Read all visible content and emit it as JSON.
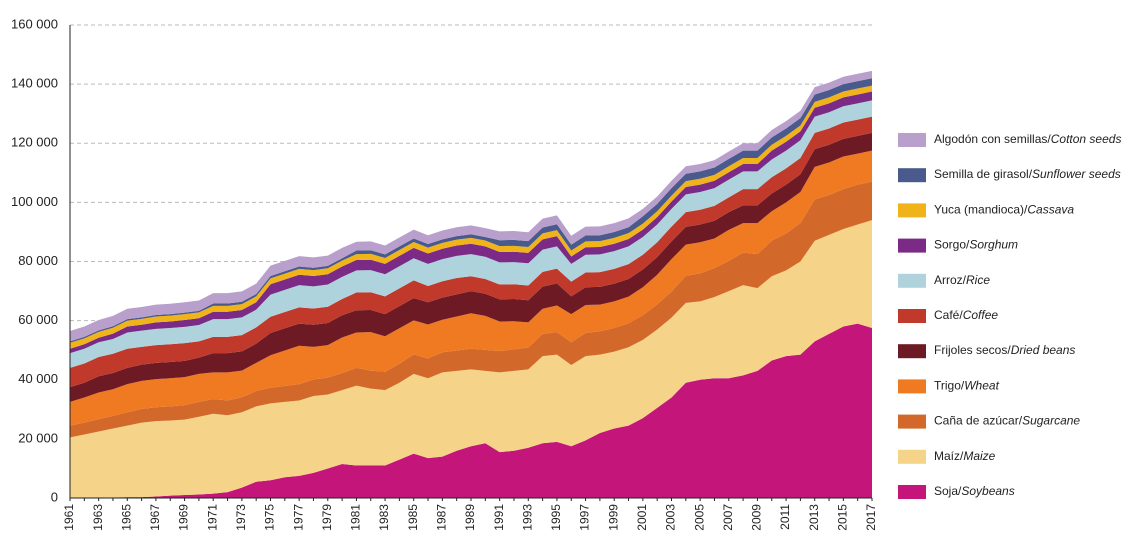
{
  "chart_data": {
    "type": "area",
    "stacked": true,
    "grid": true,
    "legend": "right",
    "categories": [
      "1961",
      null,
      "1963",
      null,
      "1965",
      null,
      "1967",
      null,
      "1969",
      null,
      "1971",
      null,
      "1973",
      null,
      "1975",
      null,
      "1977",
      null,
      "1979",
      null,
      "1981",
      null,
      "1983",
      null,
      "1985",
      null,
      "1987",
      null,
      "1989",
      null,
      "1991",
      null,
      "1993",
      null,
      "1995",
      null,
      "1997",
      null,
      "1999",
      null,
      "2001",
      null,
      "2003",
      null,
      "2005",
      null,
      "2007",
      null,
      "2009",
      null,
      "2011",
      null,
      "2013",
      null,
      "2015",
      null,
      "2017"
    ],
    "ylim": [
      0,
      160000
    ],
    "yticks": [
      0,
      {
        "value": 20000,
        "label": "20 000"
      },
      {
        "value": 40000,
        "label": "40 000"
      },
      {
        "value": 60000,
        "label": "60 000"
      },
      {
        "value": 80000,
        "label": "80 000"
      },
      {
        "value": 100000,
        "label": "100 000"
      },
      {
        "value": 120000,
        "label": "120 000"
      },
      {
        "value": 140000,
        "label": "140 000"
      },
      {
        "value": 160000,
        "label": "160 000"
      }
    ],
    "series": [
      {
        "name": "Soja/Soybeans",
        "color": "#c4157b",
        "values": [
          0,
          0,
          100,
          200,
          300,
          300,
          500,
          800,
          1000,
          1200,
          1500,
          2000,
          3500,
          5500,
          6000,
          7000,
          7500,
          8500,
          10000,
          11500,
          11000,
          11000,
          11000,
          13000,
          15000,
          13500,
          14000,
          16000,
          17500,
          18500,
          15500,
          16000,
          17000,
          18500,
          19000,
          17500,
          19500,
          22000,
          23500,
          24500,
          27000,
          30500,
          34000,
          39000,
          40000,
          40500,
          40500,
          41500,
          43000,
          46500,
          48000,
          48500,
          53000,
          55500,
          58000,
          59000,
          57500
        ]
      },
      {
        "name": "Maíz/Maize",
        "color": "#f5d388",
        "values": [
          20500,
          21500,
          22400,
          23300,
          24200,
          25200,
          25500,
          25400,
          25500,
          26300,
          27000,
          26000,
          25500,
          25500,
          26000,
          25500,
          25500,
          26000,
          25000,
          25000,
          27000,
          26000,
          25500,
          26000,
          27000,
          27000,
          28500,
          27000,
          26000,
          24500,
          27000,
          27000,
          26500,
          29500,
          29500,
          27500,
          28500,
          26500,
          26000,
          26500,
          26500,
          26500,
          27000,
          27000,
          26500,
          27500,
          29500,
          30500,
          28000,
          28500,
          29000,
          31500,
          34000,
          33500,
          33000,
          33500,
          36500
        ]
      },
      {
        "name": "Caña de azúcar/Sugarcane",
        "color": "#d2692a",
        "values": [
          4000,
          4000,
          4200,
          4300,
          4500,
          4600,
          4700,
          4800,
          4900,
          5000,
          5000,
          5000,
          5100,
          5200,
          5300,
          5400,
          5500,
          5600,
          5700,
          5800,
          6000,
          6100,
          6200,
          6400,
          6600,
          6700,
          6800,
          6900,
          7000,
          7100,
          7200,
          7300,
          7400,
          7500,
          7600,
          7700,
          7800,
          7900,
          8000,
          8100,
          8300,
          8500,
          8800,
          9200,
          9500,
          9800,
          10200,
          11000,
          11500,
          12000,
          12500,
          13000,
          14000,
          13500,
          13500,
          13500,
          13000
        ]
      },
      {
        "name": "Trigo/Wheat",
        "color": "#f07a22",
        "values": [
          8000,
          8500,
          9000,
          9000,
          9500,
          9500,
          9500,
          9500,
          9500,
          9500,
          9000,
          9500,
          9000,
          9500,
          11000,
          12000,
          13000,
          11000,
          11000,
          12000,
          12000,
          13000,
          12000,
          12000,
          11500,
          11500,
          11000,
          11500,
          12000,
          11500,
          10000,
          9500,
          8500,
          8500,
          9000,
          9500,
          9500,
          9000,
          9000,
          9000,
          9500,
          10000,
          11000,
          10500,
          10500,
          10000,
          10500,
          10000,
          10500,
          10000,
          10500,
          10500,
          11000,
          11000,
          11000,
          10500,
          10500
        ]
      },
      {
        "name": "Frijoles secos/Dried beans",
        "color": "#6e1a24",
        "values": [
          5000,
          5000,
          5500,
          5500,
          5500,
          5500,
          5500,
          5500,
          5500,
          5500,
          6500,
          6500,
          6500,
          6500,
          7500,
          7500,
          7500,
          7500,
          7500,
          7500,
          7500,
          7500,
          7500,
          7500,
          7500,
          7500,
          7500,
          7500,
          7500,
          7500,
          7500,
          7500,
          7500,
          7500,
          7500,
          6000,
          6000,
          6000,
          6000,
          6000,
          6000,
          6000,
          6000,
          6000,
          6000,
          6000,
          6000,
          6000,
          6000,
          6000,
          6000,
          6000,
          6000,
          6000,
          6000,
          6000,
          6000
        ]
      },
      {
        "name": "Café/Coffee",
        "color": "#c0392b",
        "values": [
          6500,
          6500,
          6500,
          6500,
          6500,
          6000,
          6000,
          6000,
          6000,
          5500,
          5500,
          5500,
          5500,
          5500,
          5500,
          5500,
          5500,
          5500,
          5500,
          5500,
          6000,
          6000,
          6000,
          6000,
          6000,
          5500,
          5500,
          5500,
          5000,
          5000,
          5000,
          5000,
          5000,
          5000,
          5000,
          5000,
          5000,
          5000,
          5000,
          5000,
          5000,
          5000,
          5000,
          5000,
          5000,
          5000,
          5000,
          5500,
          5500,
          5500,
          5500,
          5500,
          5500,
          5500,
          5500,
          5500,
          5500
        ]
      },
      {
        "name": "Arroz/Rice",
        "color": "#aed3dc",
        "values": [
          5000,
          5000,
          5000,
          5000,
          5500,
          5500,
          5500,
          5500,
          5500,
          5500,
          6000,
          6000,
          6000,
          6000,
          7500,
          7500,
          7500,
          7500,
          7500,
          7500,
          7500,
          7500,
          7500,
          7500,
          7500,
          7500,
          7500,
          7500,
          7500,
          7500,
          7500,
          7500,
          7500,
          7500,
          7500,
          6000,
          6000,
          6000,
          6000,
          6000,
          6000,
          6000,
          6000,
          6000,
          6000,
          6000,
          6000,
          6000,
          6000,
          6000,
          6000,
          6000,
          5500,
          5500,
          5500,
          5500,
          5500
        ]
      },
      {
        "name": "Sorgo/Sorghum",
        "color": "#7b2a86",
        "values": [
          1500,
          1500,
          1500,
          1800,
          2000,
          2000,
          2200,
          2200,
          2300,
          2300,
          2500,
          2500,
          2500,
          2500,
          3500,
          3500,
          3500,
          3500,
          3500,
          3500,
          3500,
          3500,
          3500,
          3500,
          3500,
          3500,
          3500,
          3500,
          3500,
          3500,
          3500,
          3500,
          3500,
          3500,
          3500,
          2500,
          2500,
          2500,
          2500,
          2500,
          2500,
          2500,
          2500,
          2500,
          2500,
          2500,
          2500,
          2500,
          2500,
          3000,
          3000,
          3000,
          3000,
          3000,
          3000,
          3000,
          3000
        ]
      },
      {
        "name": "Yuca (mandioca)/Cassava",
        "color": "#f0b31a",
        "values": [
          2000,
          2000,
          2000,
          2000,
          2000,
          2000,
          2000,
          2000,
          2000,
          2000,
          2000,
          2000,
          2000,
          2000,
          2000,
          2000,
          2000,
          2000,
          2000,
          2000,
          2000,
          2000,
          2000,
          2000,
          2000,
          2000,
          2000,
          2000,
          2000,
          2000,
          2000,
          2000,
          2000,
          2000,
          2000,
          2000,
          2000,
          2000,
          2000,
          2000,
          2000,
          2000,
          2000,
          2000,
          2000,
          2000,
          2000,
          2000,
          2000,
          2000,
          2000,
          2000,
          2000,
          2000,
          2000,
          2000,
          2000
        ]
      },
      {
        "name": "Semilla de girasol/Sunflower seeds",
        "color": "#4a5a8c",
        "values": [
          500,
          500,
          500,
          500,
          500,
          500,
          500,
          500,
          500,
          500,
          800,
          800,
          800,
          800,
          800,
          800,
          800,
          800,
          800,
          800,
          1200,
          1200,
          1200,
          1200,
          1200,
          1200,
          1200,
          1200,
          1200,
          1200,
          2000,
          2000,
          2000,
          2000,
          2000,
          2000,
          2000,
          2000,
          2000,
          2000,
          2500,
          2500,
          2500,
          2500,
          2500,
          2500,
          2500,
          2500,
          2500,
          2500,
          2500,
          2500,
          2500,
          2500,
          2500,
          2500,
          2500
        ]
      },
      {
        "name": "Algodón con semillas/Cotton seeds",
        "color": "#b9a0cc",
        "values": [
          3500,
          3500,
          3500,
          3500,
          3500,
          3500,
          3500,
          3500,
          3500,
          3500,
          3500,
          3500,
          3500,
          3500,
          3500,
          3500,
          3500,
          3500,
          3500,
          3500,
          3000,
          3000,
          3000,
          3000,
          3000,
          3000,
          3000,
          3000,
          3000,
          3000,
          3000,
          3000,
          3000,
          3000,
          3000,
          3000,
          3000,
          3000,
          3000,
          3000,
          2500,
          2500,
          2500,
          2500,
          2500,
          2500,
          2500,
          2500,
          2500,
          2500,
          2500,
          2500,
          2500,
          2500,
          2500,
          2500,
          2500
        ]
      }
    ]
  }
}
